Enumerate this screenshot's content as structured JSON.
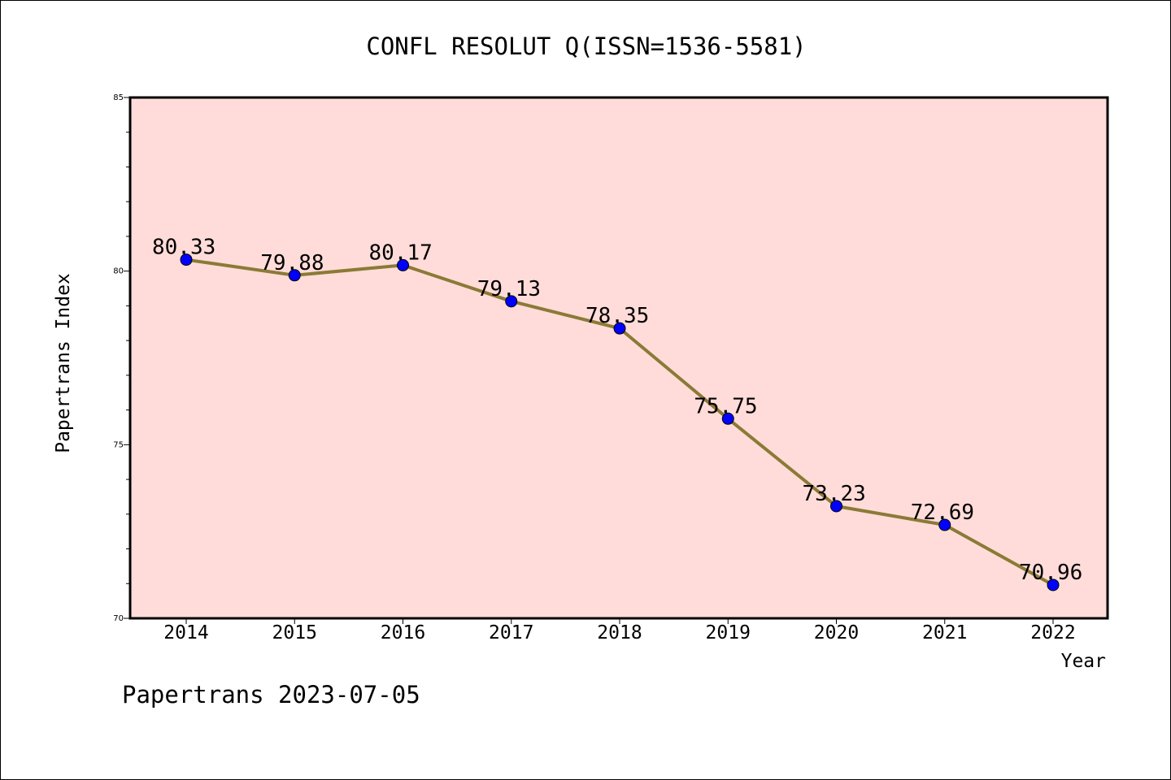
{
  "chart_data": {
    "type": "line",
    "title": "CONFL RESOLUT Q(ISSN=1536-5581)",
    "xlabel": "Year",
    "ylabel": "Papertrans Index",
    "categories": [
      "2014",
      "2015",
      "2016",
      "2017",
      "2018",
      "2019",
      "2020",
      "2021",
      "2022"
    ],
    "series": [
      {
        "values": [
          80.33,
          79.88,
          80.17,
          79.13,
          78.35,
          75.75,
          73.23,
          72.69,
          70.96
        ],
        "labels": [
          "80.33",
          "79.88",
          "80.17",
          "79.13",
          "78.35",
          "75.75",
          "73.23",
          "72.69",
          "70.96"
        ]
      }
    ],
    "ylim": [
      70,
      85
    ],
    "y_ticks": [
      "70",
      "75",
      "80",
      "85"
    ],
    "grid": false,
    "legend": "none",
    "colors": {
      "plot_background": "#ffdcd9",
      "line": "#8b7a36",
      "marker": "#0000ff"
    }
  },
  "footer": {
    "watermark": "Papertrans 2023-07-05"
  }
}
